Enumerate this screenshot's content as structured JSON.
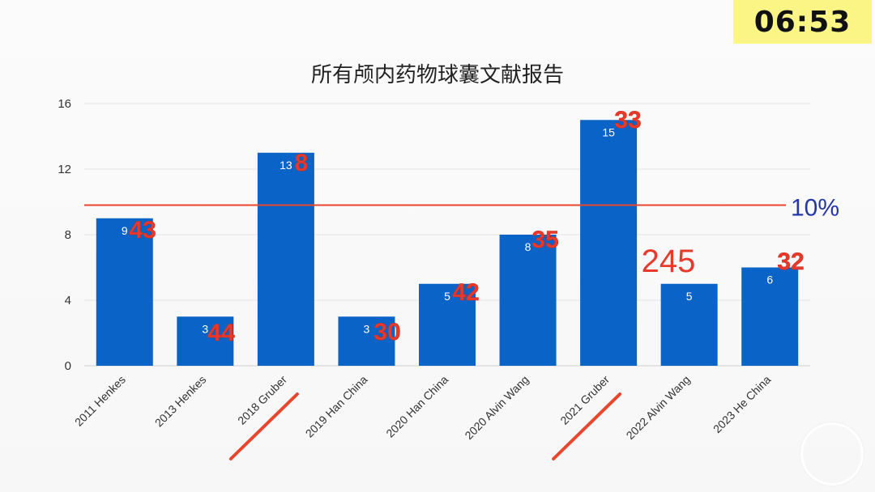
{
  "timer": "06:53",
  "chart_data": {
    "type": "bar",
    "title": "所有颅内药物球囊文献报告",
    "categories": [
      "2011 Henkes",
      "2013 Henkes",
      "2018 Gruber",
      "2019 Han China",
      "2020 Han China",
      "2020 Alvin Wang",
      "2021 Gruber",
      "2022 Alvin Wang",
      "2023 He China"
    ],
    "values": [
      9,
      3,
      13,
      3,
      5,
      8,
      15,
      5,
      6
    ],
    "data_labels": [
      "9",
      "3",
      "13",
      "3",
      "5",
      "8",
      "15",
      "5",
      "6"
    ],
    "yticks": [
      0,
      4,
      8,
      12,
      16
    ],
    "ylim": [
      0,
      16
    ],
    "grid": true,
    "bar_color": "#0a64c8",
    "reference_line": {
      "value": 9.8,
      "label": "10%",
      "color": "#e8472e"
    },
    "annotations": [
      "43",
      "44",
      "8",
      "30",
      "42",
      "35",
      "33",
      "245",
      "32"
    ],
    "annotation_color": "#e8392a",
    "underlined_categories": [
      "2018 Gruber",
      "2021 Gruber"
    ]
  }
}
